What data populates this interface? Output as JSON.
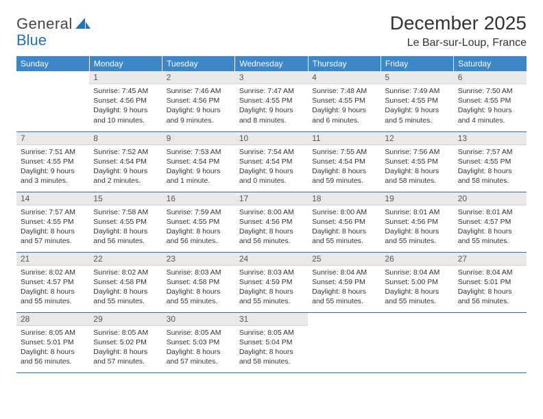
{
  "brand": {
    "word1": "General",
    "word2": "Blue"
  },
  "title": "December 2025",
  "location": "Le Bar-sur-Loup, France",
  "colors": {
    "header_bg": "#3b87c8",
    "header_text": "#ffffff",
    "daynum_bg": "#e9e9e9",
    "row_divider": "#2f6ea8",
    "logo_blue": "#2570b8",
    "body_text": "#333333",
    "page_bg": "#ffffff"
  },
  "weekdays": [
    "Sunday",
    "Monday",
    "Tuesday",
    "Wednesday",
    "Thursday",
    "Friday",
    "Saturday"
  ],
  "weeks": [
    [
      null,
      {
        "n": "1",
        "sr": "7:45 AM",
        "ss": "4:56 PM",
        "dl": "9 hours and 10 minutes."
      },
      {
        "n": "2",
        "sr": "7:46 AM",
        "ss": "4:56 PM",
        "dl": "9 hours and 9 minutes."
      },
      {
        "n": "3",
        "sr": "7:47 AM",
        "ss": "4:55 PM",
        "dl": "9 hours and 8 minutes."
      },
      {
        "n": "4",
        "sr": "7:48 AM",
        "ss": "4:55 PM",
        "dl": "9 hours and 6 minutes."
      },
      {
        "n": "5",
        "sr": "7:49 AM",
        "ss": "4:55 PM",
        "dl": "9 hours and 5 minutes."
      },
      {
        "n": "6",
        "sr": "7:50 AM",
        "ss": "4:55 PM",
        "dl": "9 hours and 4 minutes."
      }
    ],
    [
      {
        "n": "7",
        "sr": "7:51 AM",
        "ss": "4:55 PM",
        "dl": "9 hours and 3 minutes."
      },
      {
        "n": "8",
        "sr": "7:52 AM",
        "ss": "4:54 PM",
        "dl": "9 hours and 2 minutes."
      },
      {
        "n": "9",
        "sr": "7:53 AM",
        "ss": "4:54 PM",
        "dl": "9 hours and 1 minute."
      },
      {
        "n": "10",
        "sr": "7:54 AM",
        "ss": "4:54 PM",
        "dl": "9 hours and 0 minutes."
      },
      {
        "n": "11",
        "sr": "7:55 AM",
        "ss": "4:54 PM",
        "dl": "8 hours and 59 minutes."
      },
      {
        "n": "12",
        "sr": "7:56 AM",
        "ss": "4:55 PM",
        "dl": "8 hours and 58 minutes."
      },
      {
        "n": "13",
        "sr": "7:57 AM",
        "ss": "4:55 PM",
        "dl": "8 hours and 58 minutes."
      }
    ],
    [
      {
        "n": "14",
        "sr": "7:57 AM",
        "ss": "4:55 PM",
        "dl": "8 hours and 57 minutes."
      },
      {
        "n": "15",
        "sr": "7:58 AM",
        "ss": "4:55 PM",
        "dl": "8 hours and 56 minutes."
      },
      {
        "n": "16",
        "sr": "7:59 AM",
        "ss": "4:55 PM",
        "dl": "8 hours and 56 minutes."
      },
      {
        "n": "17",
        "sr": "8:00 AM",
        "ss": "4:56 PM",
        "dl": "8 hours and 56 minutes."
      },
      {
        "n": "18",
        "sr": "8:00 AM",
        "ss": "4:56 PM",
        "dl": "8 hours and 55 minutes."
      },
      {
        "n": "19",
        "sr": "8:01 AM",
        "ss": "4:56 PM",
        "dl": "8 hours and 55 minutes."
      },
      {
        "n": "20",
        "sr": "8:01 AM",
        "ss": "4:57 PM",
        "dl": "8 hours and 55 minutes."
      }
    ],
    [
      {
        "n": "21",
        "sr": "8:02 AM",
        "ss": "4:57 PM",
        "dl": "8 hours and 55 minutes."
      },
      {
        "n": "22",
        "sr": "8:02 AM",
        "ss": "4:58 PM",
        "dl": "8 hours and 55 minutes."
      },
      {
        "n": "23",
        "sr": "8:03 AM",
        "ss": "4:58 PM",
        "dl": "8 hours and 55 minutes."
      },
      {
        "n": "24",
        "sr": "8:03 AM",
        "ss": "4:59 PM",
        "dl": "8 hours and 55 minutes."
      },
      {
        "n": "25",
        "sr": "8:04 AM",
        "ss": "4:59 PM",
        "dl": "8 hours and 55 minutes."
      },
      {
        "n": "26",
        "sr": "8:04 AM",
        "ss": "5:00 PM",
        "dl": "8 hours and 55 minutes."
      },
      {
        "n": "27",
        "sr": "8:04 AM",
        "ss": "5:01 PM",
        "dl": "8 hours and 56 minutes."
      }
    ],
    [
      {
        "n": "28",
        "sr": "8:05 AM",
        "ss": "5:01 PM",
        "dl": "8 hours and 56 minutes."
      },
      {
        "n": "29",
        "sr": "8:05 AM",
        "ss": "5:02 PM",
        "dl": "8 hours and 57 minutes."
      },
      {
        "n": "30",
        "sr": "8:05 AM",
        "ss": "5:03 PM",
        "dl": "8 hours and 57 minutes."
      },
      {
        "n": "31",
        "sr": "8:05 AM",
        "ss": "5:04 PM",
        "dl": "8 hours and 58 minutes."
      },
      null,
      null,
      null
    ]
  ],
  "labels": {
    "sunrise": "Sunrise:",
    "sunset": "Sunset:",
    "daylight": "Daylight:"
  }
}
